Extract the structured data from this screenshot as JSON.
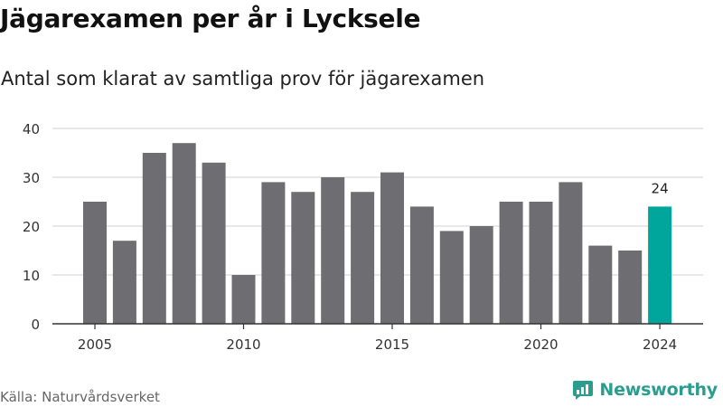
{
  "header": {
    "title": "Jägarexamen per år i Lycksele",
    "subtitle": "Antal som klarat av samtliga prov för jägarexamen"
  },
  "footer": {
    "source": "Källa: Naturvårdsverket",
    "brand": "Newsworthy",
    "brand_icon": "newsworthy-logo-icon"
  },
  "colors": {
    "bar": "#6e6d72",
    "highlight": "#00a59b",
    "grid": "#d9d9d9",
    "axis": "#333333",
    "brand": "#2a9d8f"
  },
  "chart_data": {
    "type": "bar",
    "title": "Jägarexamen per år i Lycksele",
    "subtitle": "Antal som klarat av samtliga prov för jägarexamen",
    "categories": [
      2005,
      2006,
      2007,
      2008,
      2009,
      2010,
      2011,
      2012,
      2013,
      2014,
      2015,
      2016,
      2017,
      2018,
      2019,
      2020,
      2021,
      2022,
      2023,
      2024
    ],
    "values": [
      25,
      17,
      35,
      37,
      33,
      10,
      29,
      27,
      30,
      27,
      31,
      24,
      19,
      20,
      25,
      25,
      29,
      16,
      15,
      24
    ],
    "highlight": {
      "category": 2024,
      "value": 24,
      "label": "24"
    },
    "x_tick_labels": [
      "2005",
      "2010",
      "2015",
      "2020",
      "2024"
    ],
    "y_ticks": [
      0,
      10,
      20,
      30,
      40
    ],
    "ylim": [
      0,
      40
    ],
    "xlabel": "",
    "ylabel": "",
    "grid": true,
    "legend": "none"
  }
}
